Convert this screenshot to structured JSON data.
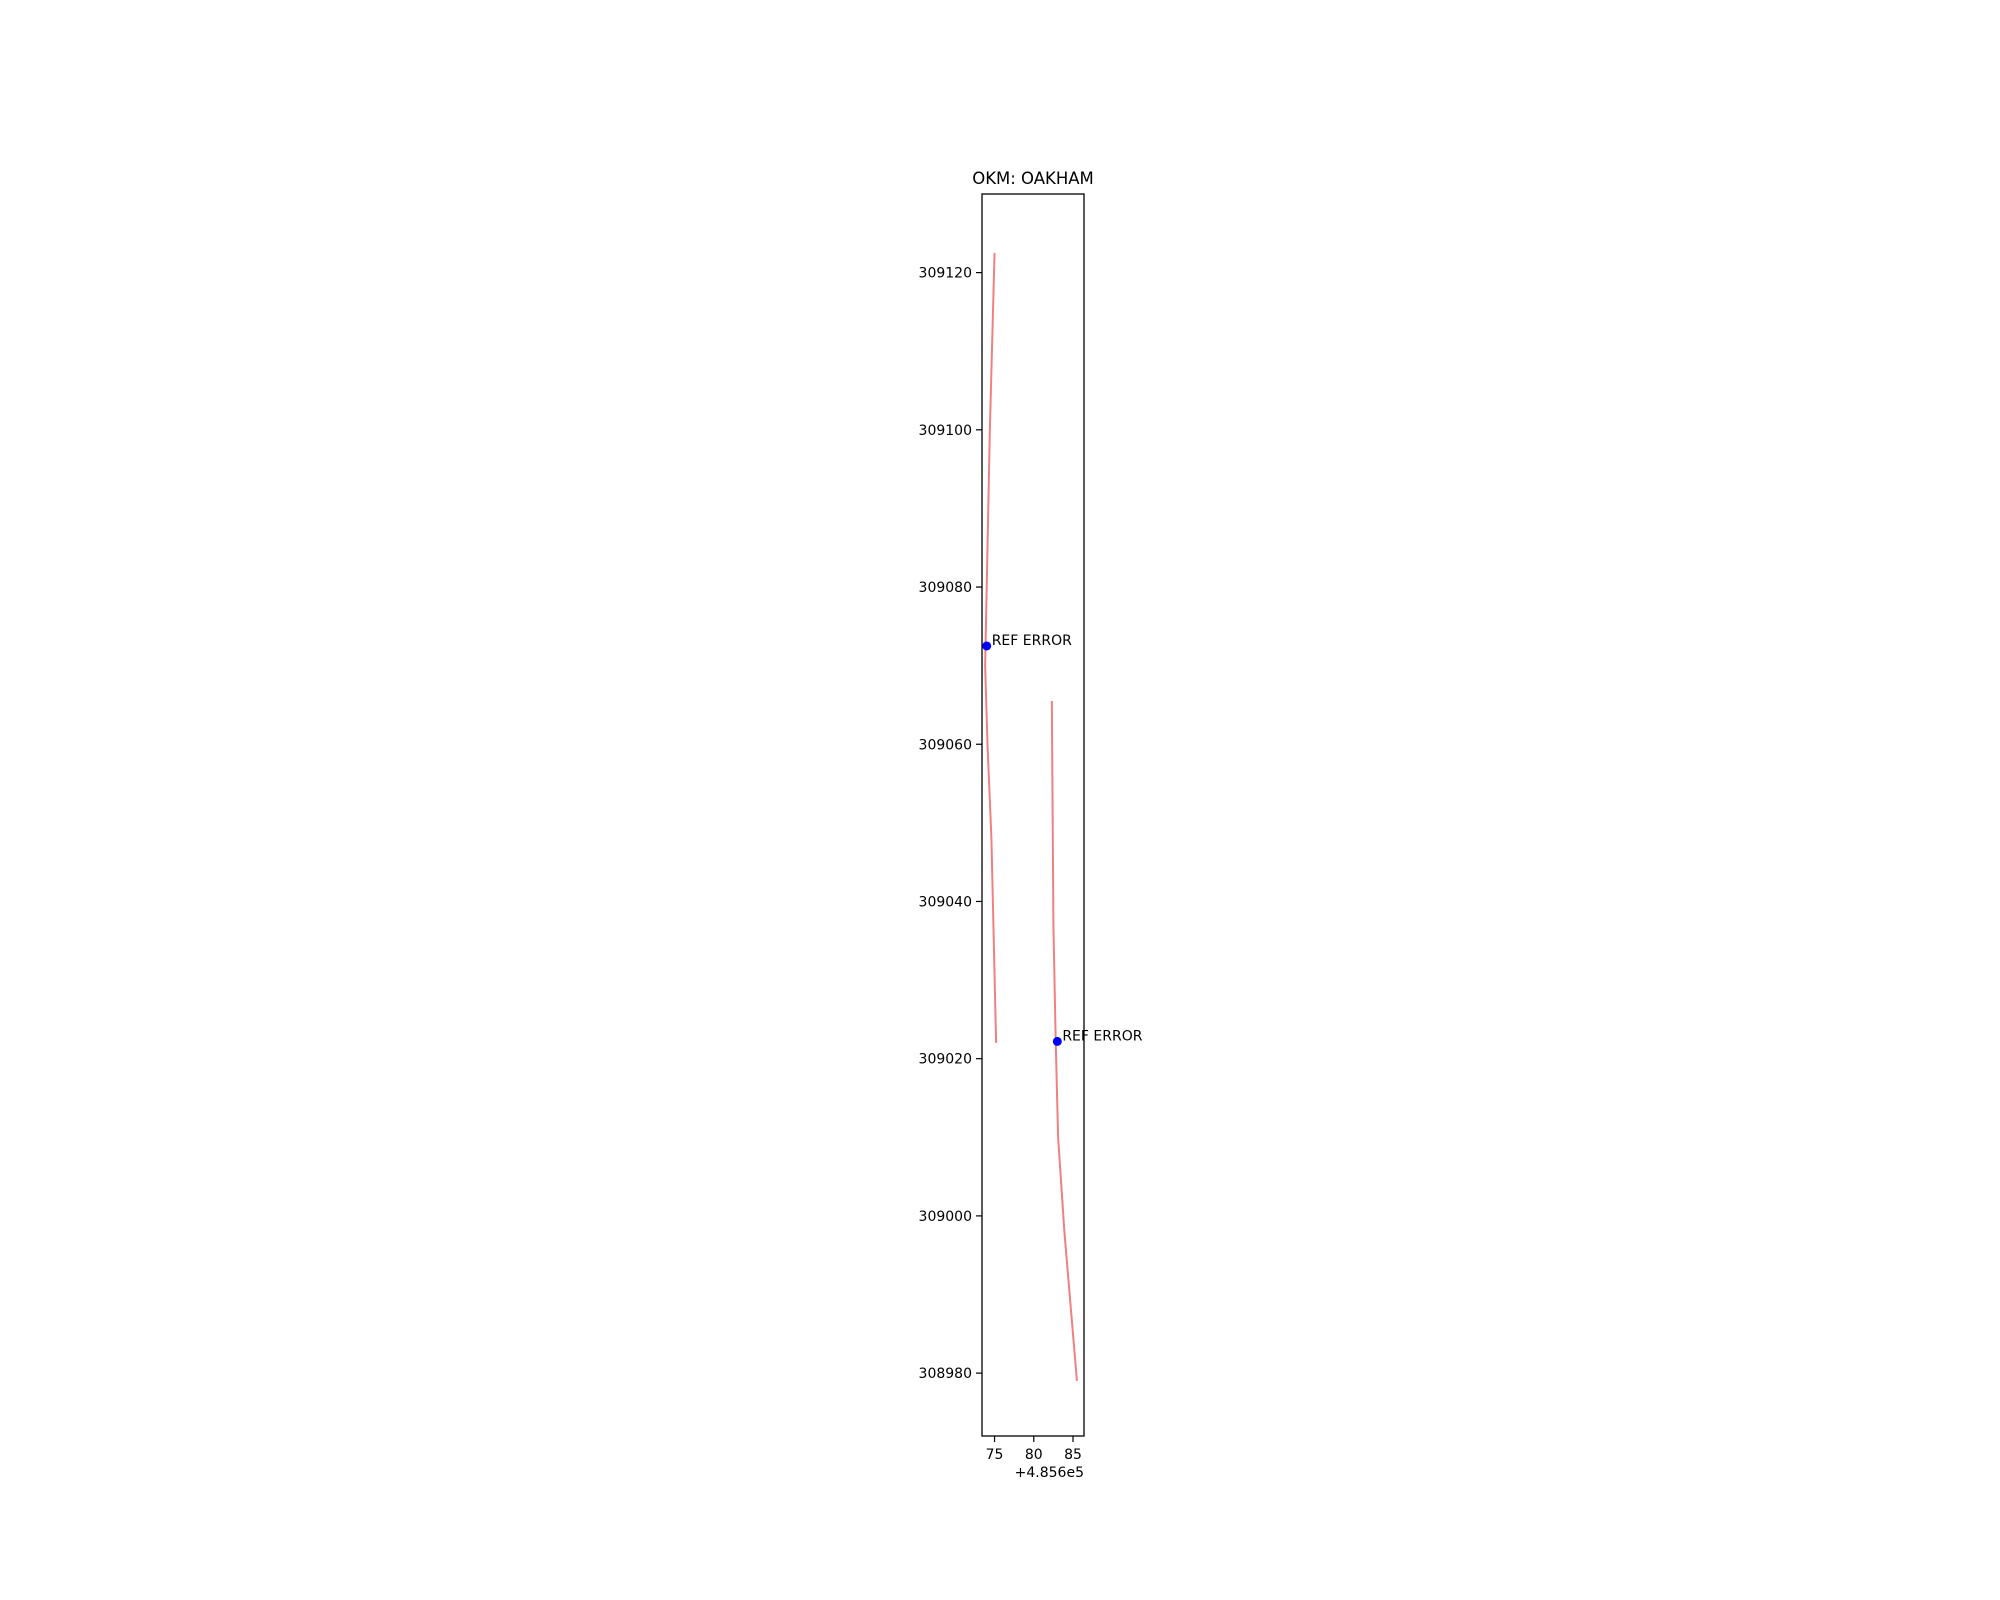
{
  "chart_data": {
    "type": "line",
    "title": "OKM: OAKHAM",
    "xlabel": "",
    "ylabel": "",
    "x_offset_label": "+4.856e5",
    "xlim": [
      73.4,
      86.4
    ],
    "ylim": [
      308972,
      309130
    ],
    "xticks": [
      {
        "value": 75,
        "label": "75"
      },
      {
        "value": 80,
        "label": "80"
      },
      {
        "value": 85,
        "label": "85"
      }
    ],
    "yticks": [
      {
        "value": 308980,
        "label": "308980"
      },
      {
        "value": 309000,
        "label": "309000"
      },
      {
        "value": 309020,
        "label": "309020"
      },
      {
        "value": 309040,
        "label": "309040"
      },
      {
        "value": 309060,
        "label": "309060"
      },
      {
        "value": 309080,
        "label": "309080"
      },
      {
        "value": 309100,
        "label": "309100"
      },
      {
        "value": 309120,
        "label": "309120"
      }
    ],
    "grid": false,
    "series": [
      {
        "type": "line",
        "color": "#f08080",
        "points": [
          [
            75.0,
            309122.5
          ],
          [
            74.4,
            309100
          ],
          [
            74.0,
            309080
          ],
          [
            73.8,
            309070
          ],
          [
            74.1,
            309060
          ],
          [
            74.6,
            309048
          ],
          [
            75.2,
            309022
          ]
        ]
      },
      {
        "type": "line",
        "color": "#f08080",
        "points": [
          [
            82.3,
            309065.5
          ],
          [
            82.5,
            309037
          ],
          [
            82.8,
            309022
          ],
          [
            83.1,
            309010
          ],
          [
            83.9,
            308998
          ],
          [
            85.5,
            308979
          ]
        ]
      }
    ],
    "points": [
      {
        "x": 74.0,
        "y": 309072.5,
        "color": "#0000ff",
        "label": "REF ERROR"
      },
      {
        "x": 83.0,
        "y": 309022.2,
        "color": "#0000ff",
        "label": "REF ERROR"
      }
    ]
  }
}
